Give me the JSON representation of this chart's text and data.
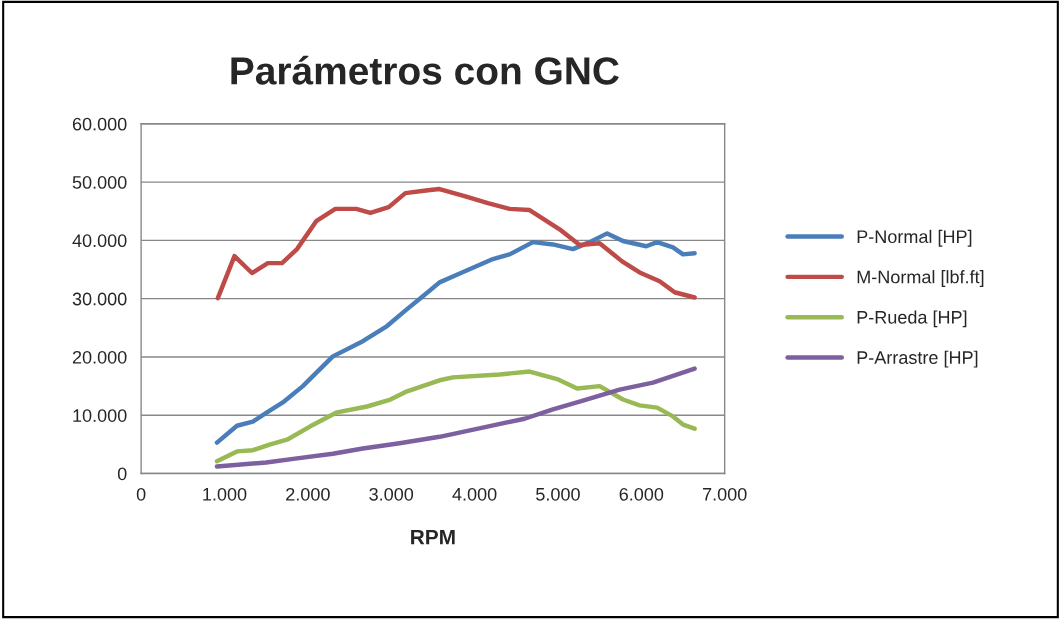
{
  "chart_data": {
    "type": "line",
    "title": "Parámetros con GNC",
    "xlabel": "RPM",
    "xlim": [
      0,
      7000
    ],
    "xticks": [
      0,
      {
        "value": 1000,
        "label": "1.000"
      },
      {
        "value": 2000,
        "label": "2.000"
      },
      {
        "value": 3000,
        "label": "3.000"
      },
      {
        "value": 4000,
        "label": "4.000"
      },
      {
        "value": 5000,
        "label": "5.000"
      },
      {
        "value": 6000,
        "label": "6.000"
      },
      {
        "value": 7000,
        "label": "7.000"
      }
    ],
    "ylim": [
      0,
      60000
    ],
    "yticks": [
      0,
      {
        "value": 10000,
        "label": "10.000"
      },
      {
        "value": 20000,
        "label": "20.000"
      },
      {
        "value": 30000,
        "label": "30.000"
      },
      {
        "value": 40000,
        "label": "40.000"
      },
      {
        "value": 50000,
        "label": "50.000"
      },
      {
        "value": 60000,
        "label": "60.000"
      }
    ],
    "grid": "y",
    "legend": "right",
    "marker": "none",
    "line_style": "solid",
    "series": [
      {
        "name": "P-Normal [HP]",
        "color": "#4a7ebb",
        "x": [
          910,
          1150,
          1340,
          1510,
          1700,
          1940,
          2300,
          2660,
          2950,
          3190,
          3380,
          3580,
          3740,
          4220,
          4420,
          4700,
          4940,
          5180,
          5380,
          5590,
          5780,
          6060,
          6190,
          6380,
          6500,
          6640
        ],
        "values": [
          5300,
          8200,
          8900,
          10500,
          12200,
          15000,
          20100,
          22700,
          25300,
          28200,
          30400,
          32800,
          33800,
          36800,
          37600,
          39700,
          39300,
          38500,
          39700,
          41200,
          39900,
          39000,
          39700,
          38800,
          37600,
          37800
        ]
      },
      {
        "name": "M-Normal [lbf.ft]",
        "color": "#be4b48",
        "x": [
          920,
          1120,
          1330,
          1520,
          1690,
          1870,
          2100,
          2330,
          2580,
          2750,
          2970,
          3170,
          3440,
          3580,
          3880,
          4160,
          4420,
          4660,
          5020,
          5260,
          5500,
          5770,
          5980,
          6220,
          6400,
          6640
        ],
        "values": [
          30100,
          37300,
          34400,
          36100,
          36100,
          38500,
          43300,
          45400,
          45400,
          44700,
          45700,
          48100,
          48600,
          48800,
          47600,
          46400,
          45400,
          45200,
          41900,
          39200,
          39500,
          36400,
          34500,
          33000,
          31100,
          30200
        ]
      },
      {
        "name": "P-Rueda [HP]",
        "color": "#98b954",
        "x": [
          910,
          1150,
          1340,
          1550,
          1750,
          2030,
          2350,
          2710,
          2990,
          3190,
          3580,
          3740,
          4300,
          4660,
          4990,
          5230,
          5500,
          5780,
          5980,
          6190,
          6380,
          6500,
          6640
        ],
        "values": [
          2100,
          3800,
          4000,
          5000,
          5800,
          8100,
          10500,
          11500,
          12700,
          14100,
          16000,
          16500,
          17000,
          17500,
          16200,
          14600,
          15000,
          12700,
          11700,
          11300,
          9800,
          8400,
          7700
        ]
      },
      {
        "name": "P-Arrastre [HP]",
        "color": "#7d60a0",
        "x": [
          910,
          1500,
          1870,
          2300,
          2660,
          3100,
          3580,
          4140,
          4600,
          4940,
          5300,
          5740,
          6140,
          6640
        ],
        "values": [
          1200,
          1900,
          2600,
          3400,
          4300,
          5200,
          6300,
          8000,
          9400,
          11000,
          12500,
          14400,
          15600,
          18000
        ]
      }
    ]
  }
}
